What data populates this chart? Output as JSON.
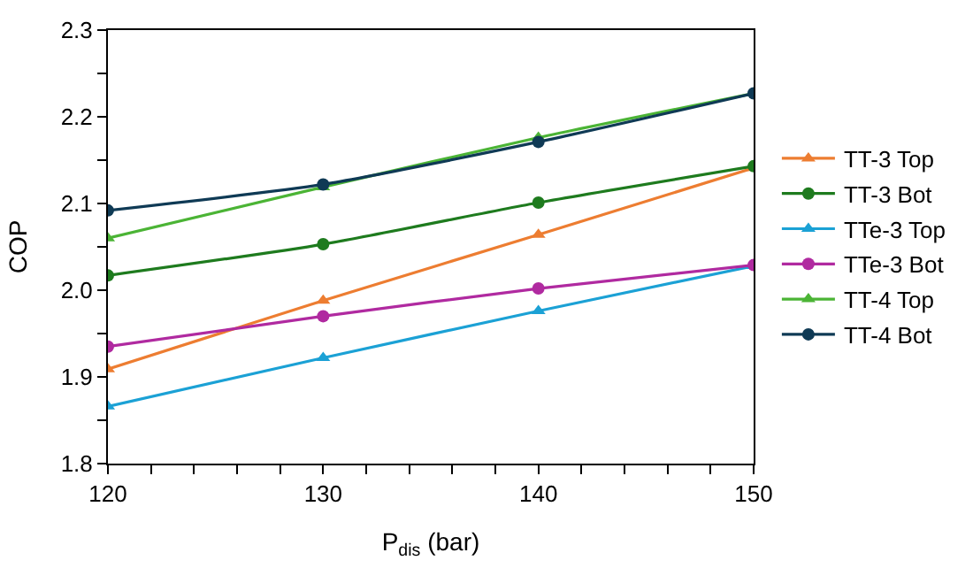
{
  "chart_data": {
    "type": "line",
    "xlabel": "P$_{dis}$ (bar)",
    "ylabel": "COP",
    "x": [
      120,
      130,
      140,
      150
    ],
    "xlim": [
      120,
      150
    ],
    "xticks": [
      120,
      {
        "value": 122,
        "label": null
      },
      {
        "value": 124,
        "label": null
      },
      {
        "value": 126,
        "label": null
      },
      {
        "value": 128,
        "label": null
      },
      130,
      {
        "value": 132,
        "label": null
      },
      {
        "value": 134,
        "label": null
      },
      {
        "value": 136,
        "label": null
      },
      {
        "value": 138,
        "label": null
      },
      140,
      {
        "value": 142,
        "label": null
      },
      {
        "value": 144,
        "label": null
      },
      {
        "value": 146,
        "label": null
      },
      {
        "value": 148,
        "label": null
      },
      150
    ],
    "ylim": [
      1.8,
      2.3
    ],
    "yticks": [
      {
        "value": 1.8,
        "label": "1.8"
      },
      {
        "value": 1.85,
        "label": null
      },
      {
        "value": 1.9,
        "label": "1.9"
      },
      {
        "value": 1.95,
        "label": null
      },
      {
        "value": 2.0,
        "label": "2.0"
      },
      {
        "value": 2.05,
        "label": null
      },
      {
        "value": 2.1,
        "label": "2.1"
      },
      {
        "value": 2.15,
        "label": null
      },
      {
        "value": 2.2,
        "label": "2.2"
      },
      {
        "value": 2.25,
        "label": null
      },
      {
        "value": 2.3,
        "label": "2.3"
      }
    ],
    "legend": "right",
    "line_style": "solid",
    "series": [
      {
        "name": "TT-3 Top",
        "color": "#ed7d31",
        "marker": "triangle",
        "values": [
          1.909,
          1.988,
          2.064,
          2.141
        ]
      },
      {
        "name": "TT-3 Bot",
        "color": "#1e7b1e",
        "marker": "circle",
        "values": [
          2.017,
          2.053,
          2.101,
          2.143
        ]
      },
      {
        "name": "TTe-3 Top",
        "color": "#1ba1d5",
        "marker": "triangle",
        "values": [
          1.866,
          1.922,
          1.976,
          2.028
        ]
      },
      {
        "name": "TTe-3 Bot",
        "color": "#b02aa0",
        "marker": "circle",
        "values": [
          1.935,
          1.97,
          2.002,
          2.029
        ]
      },
      {
        "name": "TT-4 Top",
        "color": "#4bb435",
        "marker": "triangle",
        "values": [
          2.06,
          2.119,
          2.176,
          2.227
        ]
      },
      {
        "name": "TT-4 Bot",
        "color": "#0f3a55",
        "marker": "circle",
        "values": [
          2.092,
          2.122,
          2.171,
          2.227
        ]
      }
    ]
  }
}
